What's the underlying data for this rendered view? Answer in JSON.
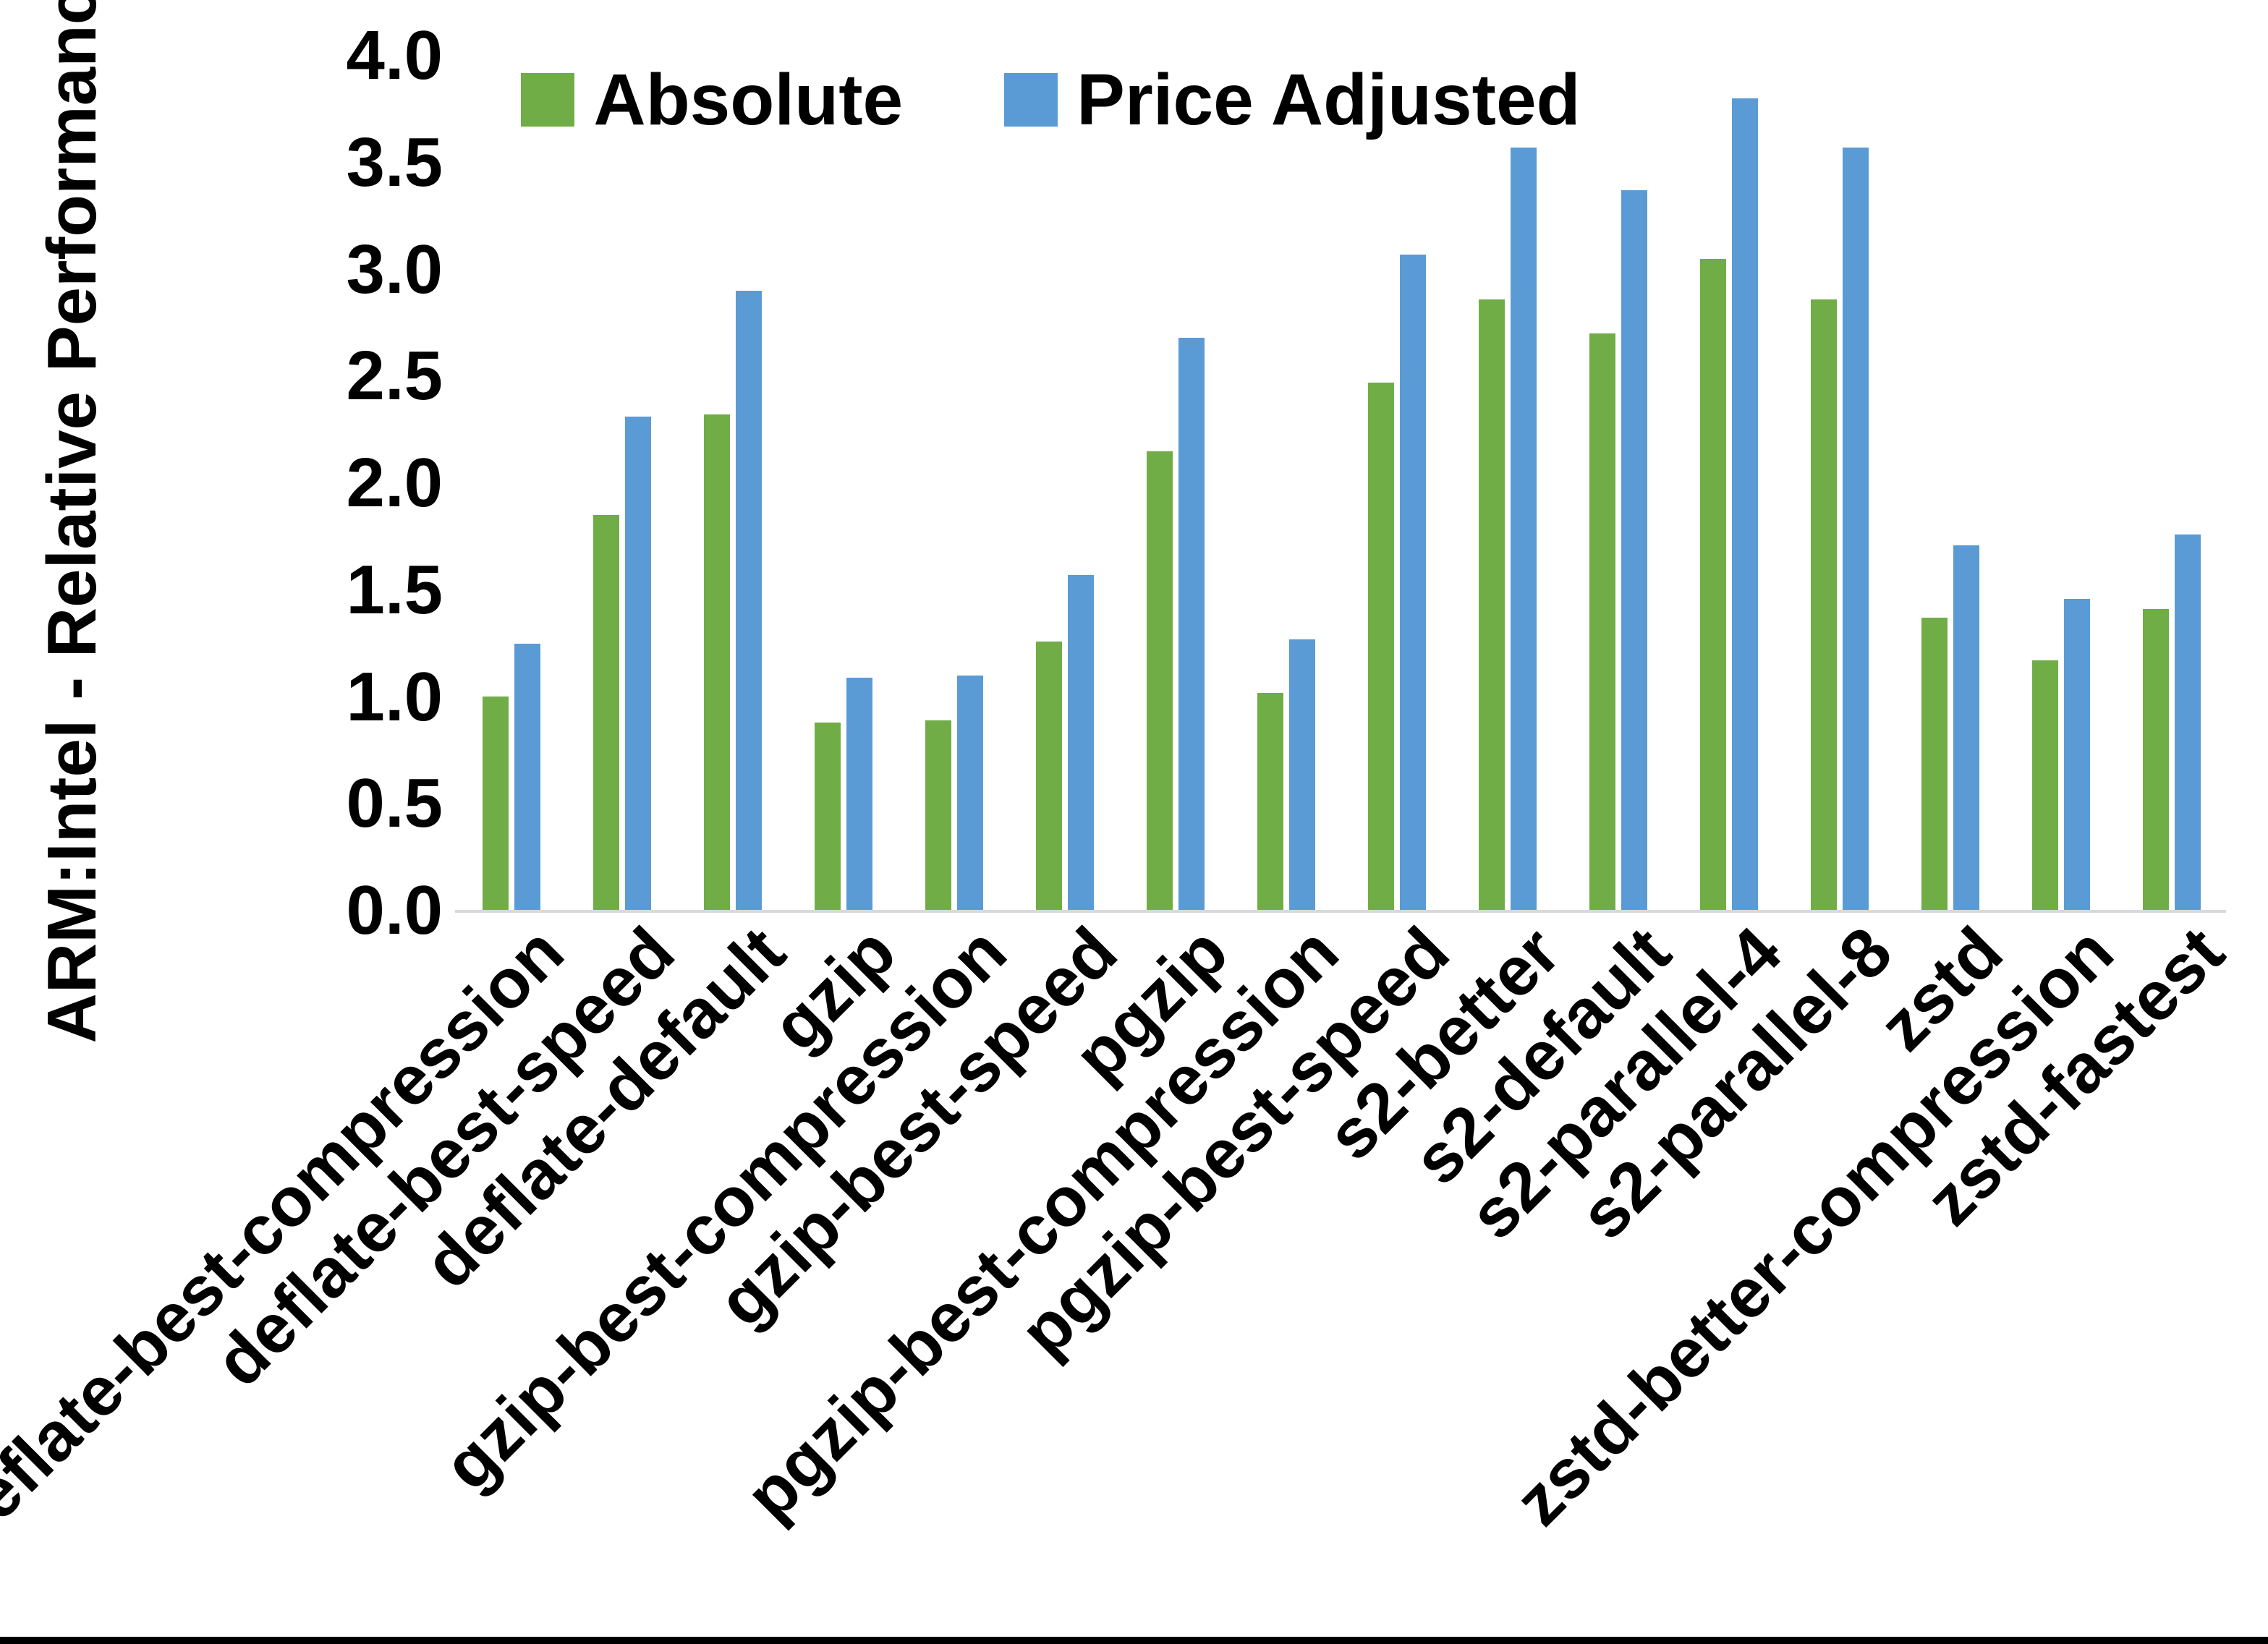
{
  "figure": {
    "ylabel": "ARM:Intel - Relative Performance",
    "background_color": "#ffffff",
    "axis_line_color": "#d9d9d9",
    "text_color": "#000000",
    "bottom_bar_color": "#000000"
  },
  "legend": {
    "position": "top-center",
    "items": [
      {
        "label": "Absolute",
        "color": "#70AD47",
        "swatch": "green-square"
      },
      {
        "label": "Price Adjusted",
        "color": "#5B9BD5",
        "swatch": "blue-square"
      }
    ]
  },
  "chart_data": {
    "type": "bar",
    "title": "",
    "xlabel": "",
    "ylabel": "ARM:Intel - Relative Performance",
    "ylim": [
      0.0,
      4.0
    ],
    "yticks": [
      "0.0",
      "0.5",
      "1.0",
      "1.5",
      "2.0",
      "2.5",
      "3.0",
      "3.5",
      "4.0"
    ],
    "grid": false,
    "legend_position": "top-center",
    "x_tick_rotation_deg": 45,
    "categories": [
      "deflate-best-compression",
      "deflate-best-speed",
      "deflate-default",
      "gzip",
      "gzip-best-compression",
      "gzip-best-speed",
      "pgzip",
      "pgzip-best-compression",
      "pgzip-best-speed",
      "s2-better",
      "s2-default",
      "s2-parallel-4",
      "s2-parallel-8",
      "zstd",
      "zstd-better-compression",
      "zstd-fastest"
    ],
    "series": [
      {
        "name": "Absolute",
        "color": "#70AD47",
        "values": [
          1.0,
          1.85,
          2.32,
          0.88,
          0.89,
          1.26,
          2.15,
          1.02,
          2.47,
          2.86,
          2.7,
          3.05,
          2.86,
          1.37,
          1.17,
          1.41
        ]
      },
      {
        "name": "Price Adjusted",
        "color": "#5B9BD5",
        "values": [
          1.25,
          2.31,
          2.9,
          1.09,
          1.1,
          1.57,
          2.68,
          1.27,
          3.07,
          3.57,
          3.37,
          3.8,
          3.57,
          1.71,
          1.46,
          1.76
        ]
      }
    ]
  }
}
